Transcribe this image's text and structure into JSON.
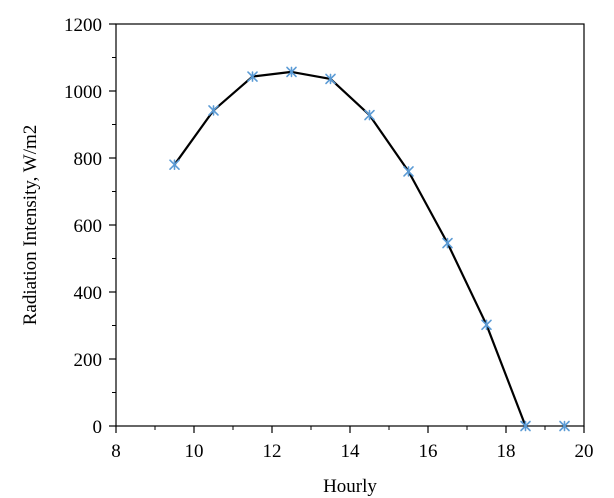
{
  "chart_data": {
    "type": "line",
    "xlabel": "Hourly",
    "ylabel": "Radiation Intensity, W/m2",
    "xlim": [
      8,
      20
    ],
    "ylim": [
      0,
      1200
    ],
    "xticks": [
      8,
      10,
      12,
      14,
      16,
      18,
      20
    ],
    "yticks": [
      0,
      200,
      400,
      600,
      800,
      1000,
      1200
    ],
    "grid": false,
    "series": [
      {
        "x": [
          9.5,
          10.5,
          11.5,
          12.5,
          13.5,
          14.5,
          15.5,
          16.5,
          17.5,
          18.5,
          19.5
        ],
        "y": [
          780,
          942,
          1043,
          1057,
          1036,
          928,
          760,
          546,
          302,
          0,
          0
        ],
        "line_x": [
          9.5,
          10.5,
          11.5,
          12.5,
          13.5,
          14.5,
          15.5,
          16.5,
          17.5,
          18.5
        ],
        "line_color": "#000000",
        "marker": "x-star",
        "marker_color": "#5b9bd5"
      }
    ]
  }
}
